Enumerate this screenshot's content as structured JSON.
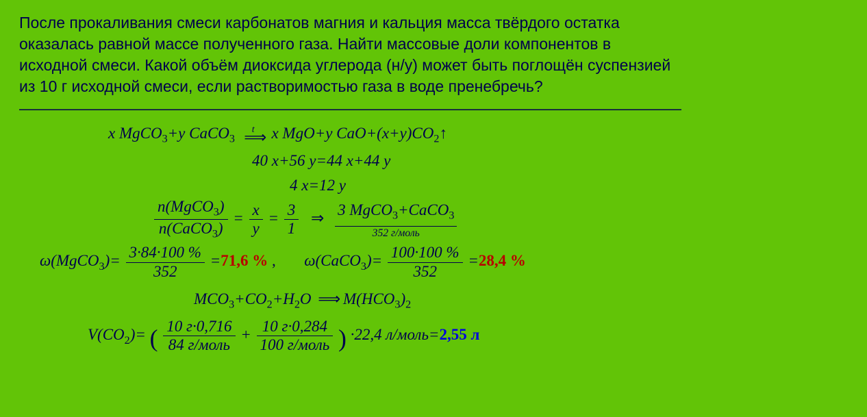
{
  "problem": {
    "line1": "После прокаливания смеси карбонатов магния и кальция масса твёрдого остатка",
    "line2": "оказалась равной массе полученного газа. Найти массовые доли компонентов в",
    "line3": "исходной смеси. Какой объём диоксида углерода (н/у) может быть поглощён суспензией",
    "line4": "из 10 г исходной смеси, если растворимостью газа в воде пренебречь?"
  },
  "divider": "――――――――――――――――――――――――――――――――――――――――――――――",
  "eq": {
    "react_l": "x MgCO",
    "react_l2": "y CaCO",
    "prod1": "x MgO",
    "prod2": "y CaO",
    "prod3a": "(x+y)CO",
    "t": "t",
    "arrow": "⇒",
    "up": "↑",
    "mass": "40 x+56 y=44 x+44 y",
    "simp": "4 x=12 y",
    "ratio_nnum": "n(MgCO",
    "ratio_nden": "n(CaCO",
    "ratio_xy": "x",
    "ratio_y": "y",
    "ratio_31": "3",
    "ratio_1": "1",
    "combined": "3 MgCO",
    "combined2": "CaCO",
    "molar": "352 г/моль",
    "omega_mg": "ω(MgCO",
    "mg_num": "3·84·100 %",
    "mg_den": "352",
    "mg_val": "71,6 %",
    "omega_ca": "ω(CaCO",
    "ca_num": "100·100 %",
    "ca_den": "352",
    "ca_val": "28,4 %",
    "bicarb_l": "MCO",
    "bicarb_m1": "CO",
    "bicarb_m2": "H",
    "bicarb_o": "O",
    "bicarb_r": "M(HCO",
    "vol_l": "V(CO",
    "vol_f1n": "10 г·0,716",
    "vol_f1d": "84 г/моль",
    "vol_f2n": "10 г·0,284",
    "vol_f2d": "100 г/моль",
    "vol_mult": "·22,4 л/моль=",
    "vol_ans": "2,55 л"
  },
  "colors": {
    "bg": "#62c407",
    "text": "#00004d",
    "red": "#b80000",
    "blue": "#0000e0"
  }
}
